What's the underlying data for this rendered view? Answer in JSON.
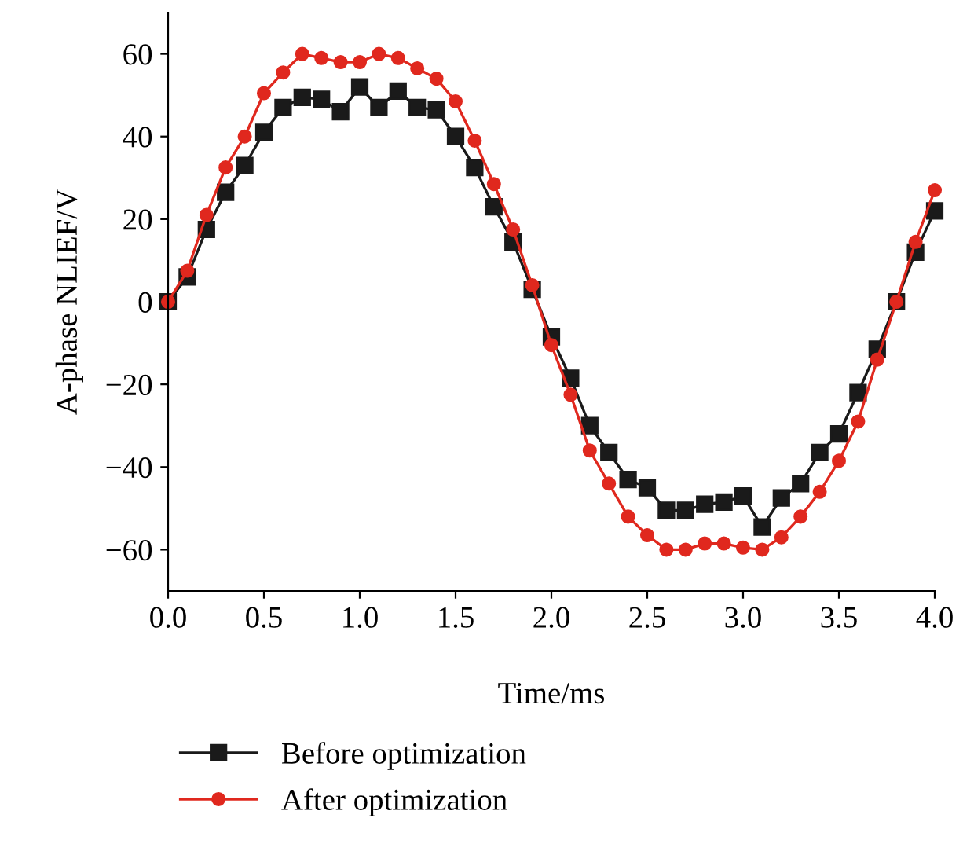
{
  "chart_data": {
    "type": "line",
    "xlabel": "Time/ms",
    "ylabel": "A-phase NLIEF/V",
    "x": [
      0,
      0.1,
      0.2,
      0.3,
      0.4,
      0.5,
      0.6,
      0.7,
      0.8,
      0.9,
      1.0,
      1.1,
      1.2,
      1.3,
      1.4,
      1.5,
      1.6,
      1.7,
      1.8,
      1.9,
      2.0,
      2.1,
      2.2,
      2.3,
      2.4,
      2.5,
      2.6,
      2.7,
      2.8,
      2.9,
      3.0,
      3.1,
      3.2,
      3.3,
      3.4,
      3.5,
      3.6,
      3.7,
      3.8,
      3.9,
      4.0
    ],
    "series": [
      {
        "name": "Before optimization",
        "color": "#1a1a1a",
        "marker": "square",
        "values": [
          0,
          6,
          17.5,
          26.5,
          33,
          41,
          47,
          49.5,
          49,
          46,
          52,
          47,
          51,
          47,
          46.5,
          40,
          32.5,
          23,
          14.5,
          3,
          -8.5,
          -18.5,
          -30,
          -36.5,
          -43,
          -45,
          -50.5,
          -50.5,
          -49,
          -48.5,
          -47,
          -54.5,
          -47.5,
          -44,
          -36.5,
          -32,
          -22,
          -11.5,
          0,
          12,
          22
        ]
      },
      {
        "name": "After optimization",
        "color": "#e0281e",
        "marker": "circle",
        "values": [
          0,
          7.5,
          21,
          32.5,
          40,
          50.5,
          55.5,
          60,
          59,
          58,
          58,
          60,
          59,
          56.5,
          54,
          48.5,
          39,
          28.5,
          17.5,
          4,
          -10.5,
          -22.5,
          -36,
          -44,
          -52,
          -56.5,
          -60,
          -60,
          -58.5,
          -58.5,
          -59.5,
          -60,
          -57,
          -52,
          -46,
          -38.5,
          -29,
          -14,
          0,
          14.5,
          27
        ]
      }
    ],
    "xlim": [
      0,
      4
    ],
    "ylim": [
      -70,
      70
    ],
    "xticks": [
      {
        "value": 0,
        "label": "0.0"
      },
      {
        "value": 0.5,
        "label": "0.5"
      },
      {
        "value": 1,
        "label": "1.0"
      },
      {
        "value": 1.5,
        "label": "1.5"
      },
      {
        "value": 2,
        "label": "2.0"
      },
      {
        "value": 2.5,
        "label": "2.5"
      },
      {
        "value": 3,
        "label": "3.0"
      },
      {
        "value": 3.5,
        "label": "3.5"
      },
      {
        "value": 4,
        "label": "4.0"
      }
    ],
    "yticks": [
      {
        "value": -60,
        "label": "−60"
      },
      {
        "value": -40,
        "label": "−40"
      },
      {
        "value": -20,
        "label": "−20"
      },
      0,
      20,
      40,
      60
    ],
    "grid": false,
    "legend": "bottom left",
    "line_style": "solid"
  }
}
